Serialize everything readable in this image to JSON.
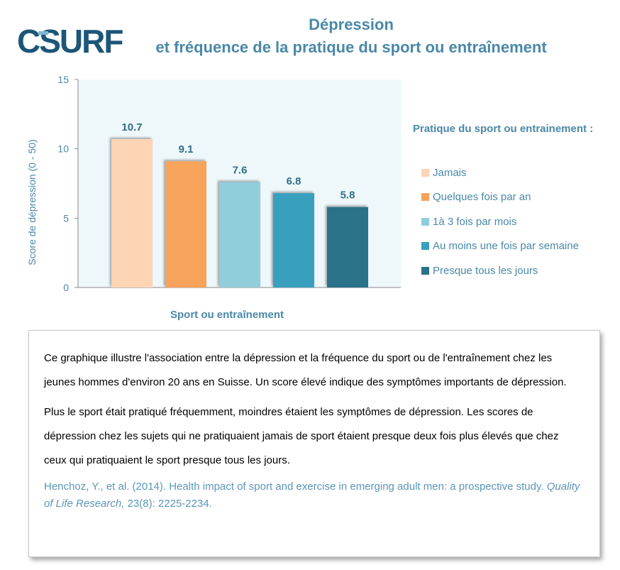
{
  "logo": {
    "text": "CSURF",
    "color": "#1d5677",
    "accent": "#7fb8d4"
  },
  "title": {
    "line1": "Dépression",
    "line2": "et fréquence de la pratique du sport ou entraînement"
  },
  "chart_data": {
    "type": "bar",
    "categories": [
      "Jamais",
      "Quelques fois par an",
      "1à 3 fois par mois",
      "Au moins une fois par semaine",
      "Presque tous les jours"
    ],
    "values": [
      10.7,
      9.1,
      7.6,
      6.8,
      5.8
    ],
    "value_labels": [
      "10.7",
      "9.1",
      "7.6",
      "6.8",
      "5.8"
    ],
    "colors": [
      "#fdd4b4",
      "#f7a35c",
      "#92cddc",
      "#38a0be",
      "#2b7289"
    ],
    "ylabel": "Score de dépression  (0 - 50)",
    "xlabel": "Sport ou entraînement",
    "ylim": [
      0,
      15
    ],
    "yticks": [
      0,
      5,
      10,
      15
    ],
    "grid": false,
    "legend_title": "Pratique du sport ou entrainement :",
    "legend_position": "right",
    "plot_background": "#eef7fa"
  },
  "info": {
    "paragraph1": "Ce graphique illustre l'association entre la dépression et la fréquence du sport ou de l'entraînement chez les jeunes hommes d'environ 20 ans en Suisse. Un score élevé indique des symptômes importants de dépression.",
    "paragraph2": "Plus le sport était pratiqué fréquemment, moindres étaient les symptômes de dépression. Les scores de dépression chez les sujets qui ne pratiquaient jamais de sport étaient presque deux fois plus élevés que chez ceux qui pratiquaient le sport presque tous les jours.",
    "ref_authors": "Henchoz, Y., et al. (2014). Health impact of sport and exercise in emerging adult men: a prospective study. ",
    "ref_journal": "Quality of Life Research,",
    "ref_volume": " 23(8): 2225-2234."
  }
}
